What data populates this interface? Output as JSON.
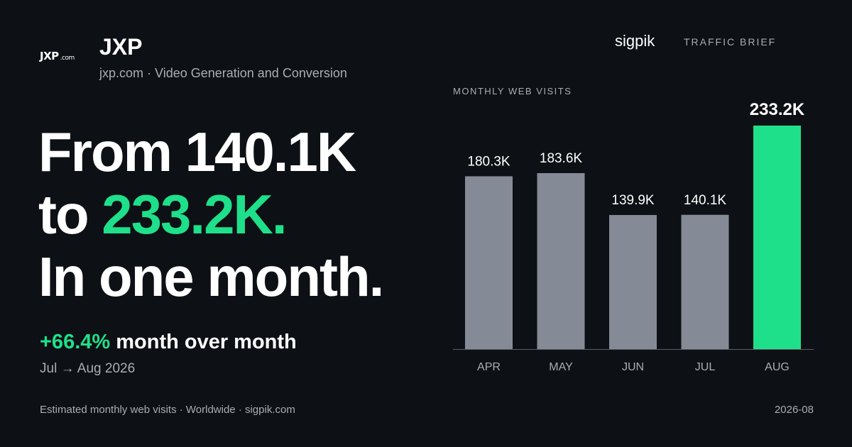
{
  "header": {
    "logo_text": "JXP",
    "logo_tld": ".com",
    "title": "JXP",
    "subtitle": "jxp.com · Video Generation and Conversion",
    "source": "sigpik",
    "brief_label": "TRAFFIC BRIEF"
  },
  "headline": {
    "line1": "From 140.1K",
    "line2_prefix": "to ",
    "line2_accent": "233.2K.",
    "line3": "In one month."
  },
  "summary": {
    "change_pct": "+66.4%",
    "change_text": " month over month",
    "period": "Jul → Aug 2026"
  },
  "footer": {
    "note": "Estimated monthly web visits · Worldwide · sigpik.com",
    "date": "2026-08"
  },
  "colors": {
    "background": "#0d1014",
    "accent": "#1fe08a",
    "bar_default": "#858a97",
    "muted_text": "#a9adb6"
  },
  "chart_data": {
    "type": "bar",
    "title": "MONTHLY WEB VISITS",
    "categories": [
      "APR",
      "MAY",
      "JUN",
      "JUL",
      "AUG"
    ],
    "values": [
      180.3,
      183.6,
      139.9,
      140.1,
      233.2
    ],
    "value_labels": [
      "180.3K",
      "183.6K",
      "139.9K",
      "140.1K",
      "233.2K"
    ],
    "highlight_index": 4,
    "ylim": [
      0,
      233.2
    ],
    "grid": false,
    "xlabel": "",
    "ylabel": ""
  }
}
